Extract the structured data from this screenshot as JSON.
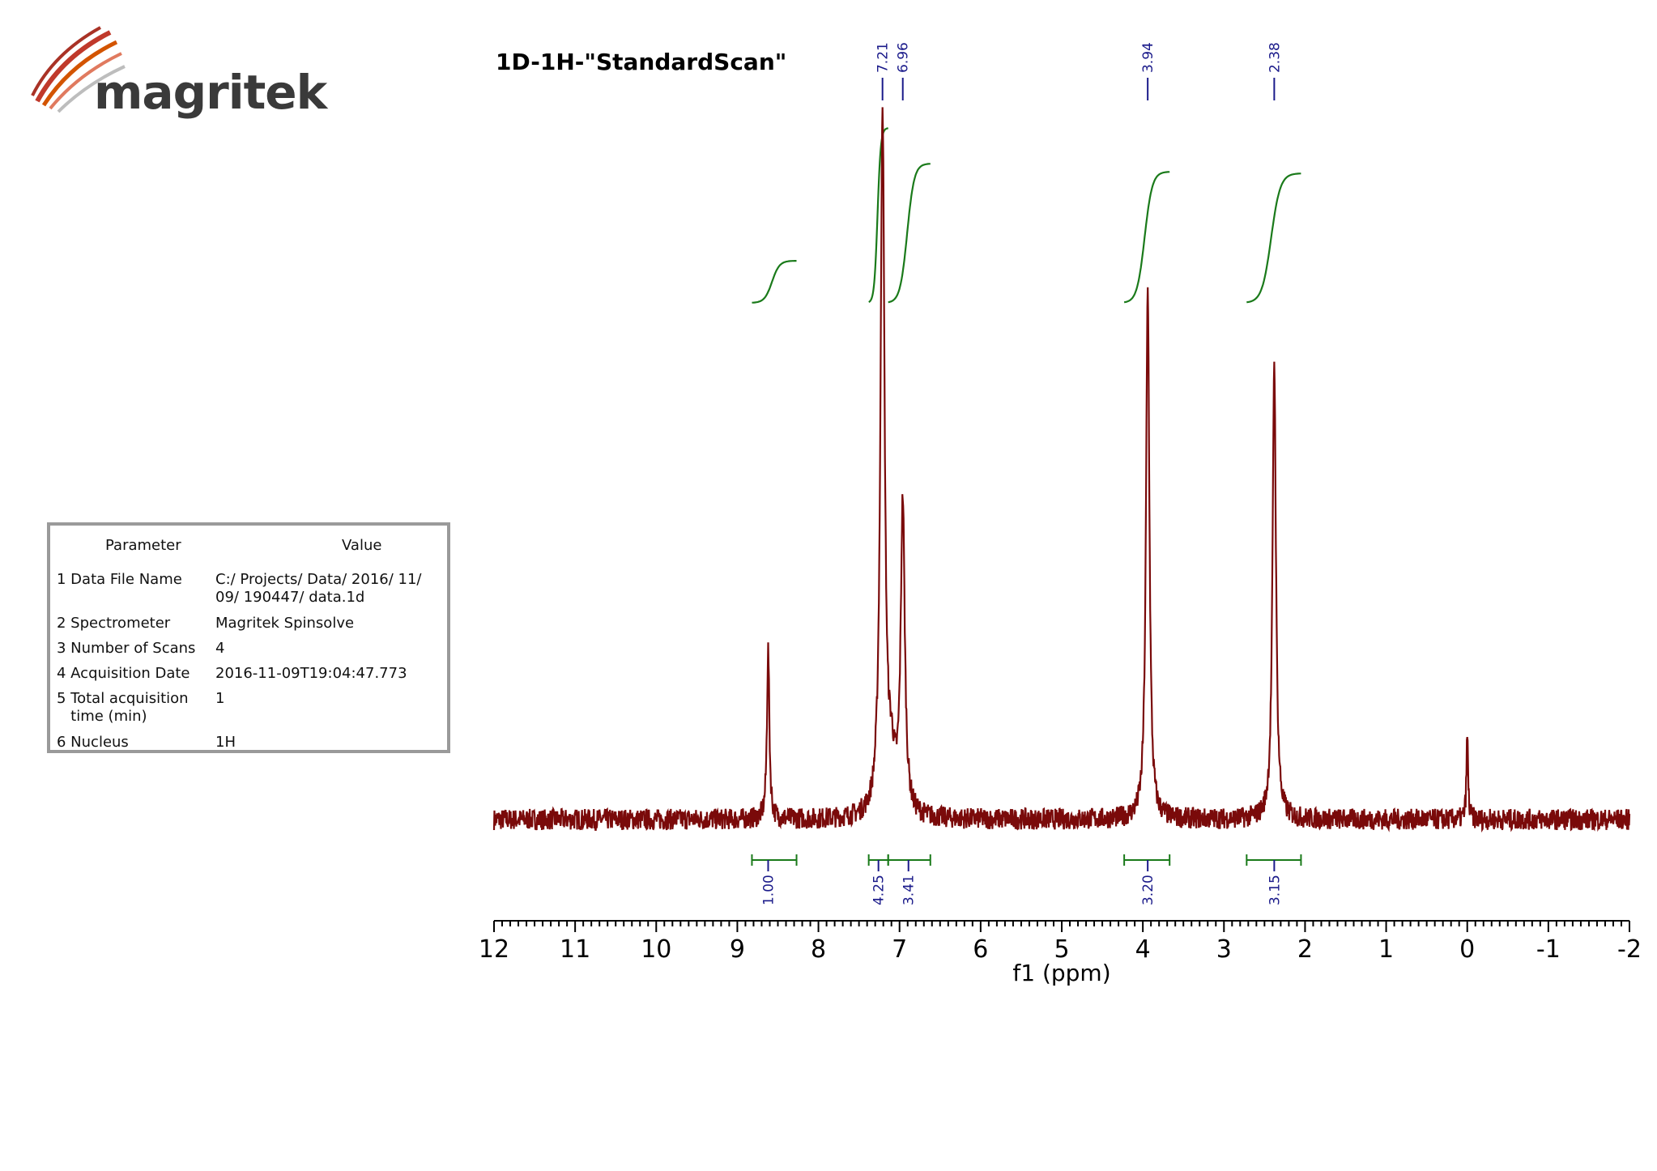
{
  "logo": {
    "text": "magritek",
    "accent": "#c0392b"
  },
  "params": {
    "header": {
      "parameter": "Parameter",
      "value": "Value"
    },
    "rows": [
      {
        "name": [
          "1 Data File Name"
        ],
        "value": [
          "C:/ Projects/ Data/ 2016/ 11/",
          "09/ 190447/ data.1d"
        ]
      },
      {
        "name": [
          "2 Spectrometer"
        ],
        "value": [
          "Magritek Spinsolve"
        ]
      },
      {
        "name": [
          "3 Number of Scans"
        ],
        "value": [
          "4"
        ]
      },
      {
        "name": [
          "4 Acquisition Date"
        ],
        "value": [
          "2016-11-09T19:04:47.773"
        ]
      },
      {
        "name": [
          "5 Total acquisition",
          "   time (min)"
        ],
        "value": [
          "1"
        ]
      },
      {
        "name": [
          "6 Nucleus"
        ],
        "value": [
          "1H"
        ]
      }
    ]
  },
  "chart_data": {
    "type": "line",
    "title": "1D-1H-\"StandardScan\"",
    "xlabel": "f1 (ppm)",
    "xlim": [
      12,
      -2
    ],
    "x_ticks": [
      "12",
      "11",
      "10",
      "9",
      "8",
      "7",
      "6",
      "5",
      "4",
      "3",
      "2",
      "1",
      "0",
      "-1",
      "-2"
    ],
    "x_reversed": true,
    "series_color": "#7a0a0a",
    "integral_color": "#1a7a1a",
    "label_color": "#1a1a8a",
    "peaks": [
      {
        "ppm": 8.62,
        "height": 0.24,
        "width": 0.018
      },
      {
        "ppm": 7.21,
        "height": 1.0,
        "width": 0.03
      },
      {
        "ppm": 7.1,
        "height": 0.06,
        "width": 0.05
      },
      {
        "ppm": 6.96,
        "height": 0.44,
        "width": 0.03
      },
      {
        "ppm": 3.94,
        "height": 0.75,
        "width": 0.025
      },
      {
        "ppm": 2.38,
        "height": 0.65,
        "width": 0.025
      },
      {
        "ppm": 0.0,
        "height": 0.12,
        "width": 0.012
      }
    ],
    "peak_labels": [
      "7.21",
      "6.96",
      "3.94",
      "2.38"
    ],
    "peak_label_ppm": [
      7.21,
      6.96,
      3.94,
      2.38
    ],
    "integrals": [
      {
        "label": "1.00",
        "from": 8.82,
        "to": 8.27,
        "center": 8.62
      },
      {
        "label": "4.25",
        "from": 7.38,
        "to": 7.14,
        "center": 7.26
      },
      {
        "label": "3.41",
        "from": 7.14,
        "to": 6.62,
        "center": 6.89
      },
      {
        "label": "3.20",
        "from": 4.23,
        "to": 3.67,
        "center": 3.94
      },
      {
        "label": "3.15",
        "from": 2.72,
        "to": 2.05,
        "center": 2.38
      }
    ]
  }
}
